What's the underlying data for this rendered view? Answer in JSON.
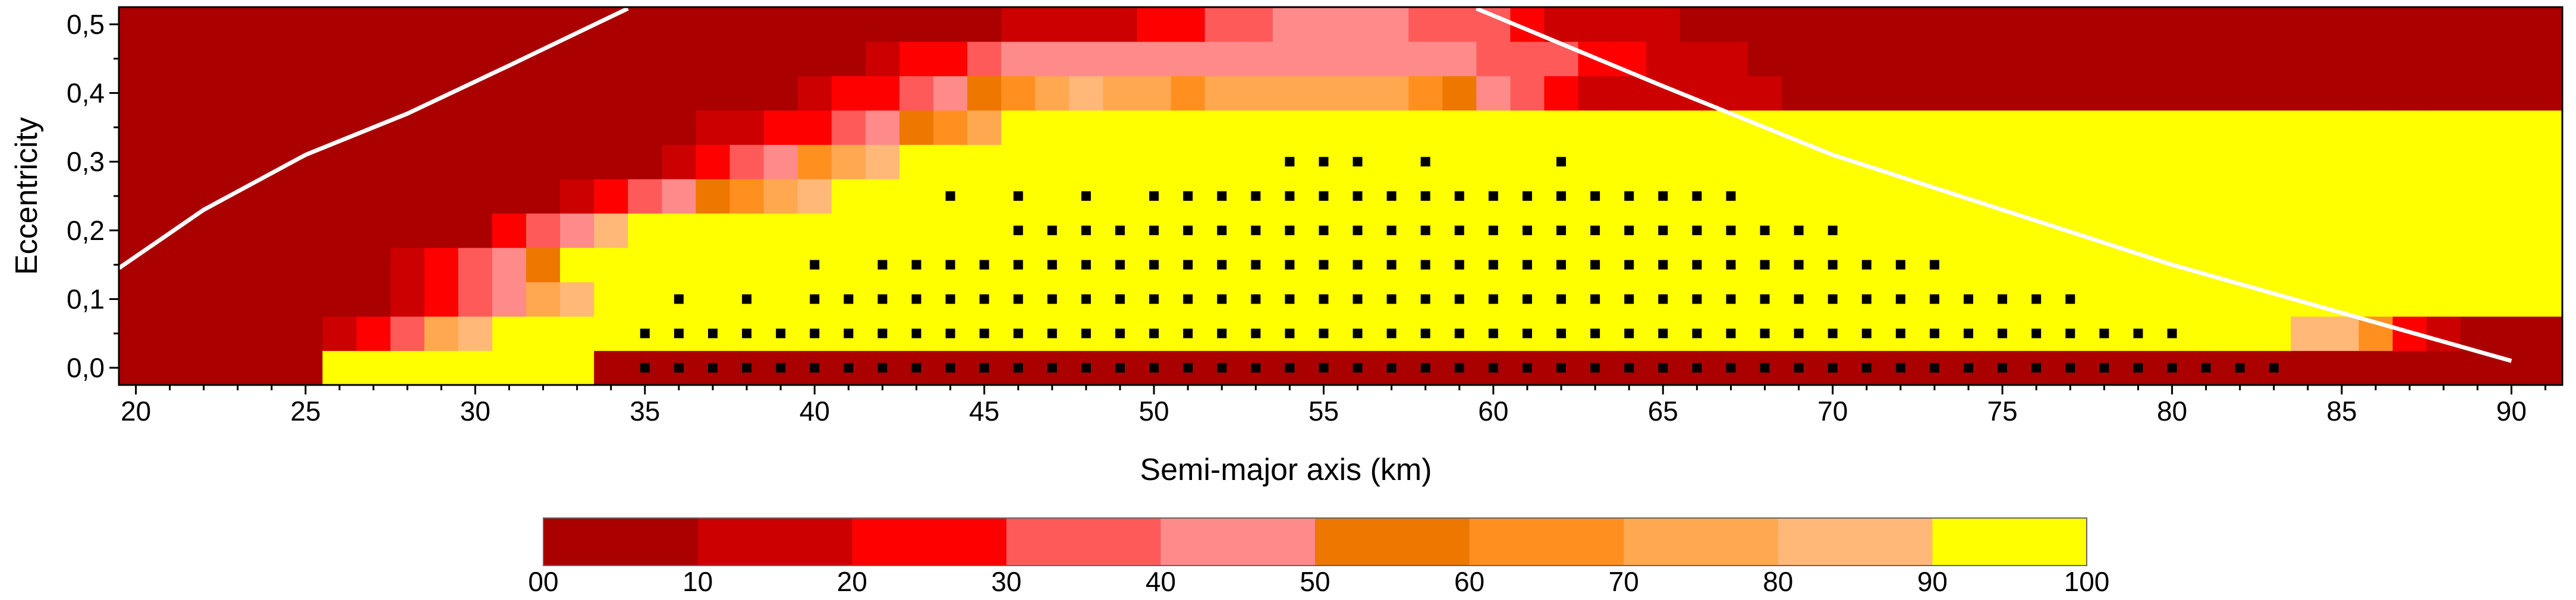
{
  "chart_data": {
    "type": "heatmap",
    "title": "",
    "xlabel": "Semi-major axis (km)",
    "ylabel": "Eccentricity",
    "xlim": [
      19.5,
      91.5
    ],
    "ylim": [
      -0.025,
      0.525
    ],
    "x_ticks": [
      20,
      25,
      30,
      35,
      40,
      45,
      50,
      55,
      60,
      65,
      70,
      75,
      80,
      85,
      90
    ],
    "y_ticks": [
      0.0,
      0.1,
      0.2,
      0.3,
      0.4,
      0.5
    ],
    "x_tick_labels": [
      "20",
      "25",
      "30",
      "35",
      "40",
      "45",
      "50",
      "55",
      "60",
      "65",
      "70",
      "75",
      "80",
      "85",
      "90"
    ],
    "y_tick_labels": [
      "0,0",
      "0,1",
      "0,2",
      "0,3",
      "0,4",
      "0,5"
    ],
    "grid": false,
    "a_values": [
      20,
      21,
      22,
      23,
      24,
      25,
      26,
      27,
      28,
      29,
      30,
      31,
      32,
      33,
      34,
      35,
      36,
      37,
      38,
      39,
      40,
      41,
      42,
      43,
      44,
      45,
      46,
      47,
      48,
      49,
      50,
      51,
      52,
      53,
      54,
      55,
      56,
      57,
      58,
      59,
      60,
      61,
      62,
      63,
      64,
      65,
      66,
      67,
      68,
      69,
      70,
      71,
      72,
      73,
      74,
      75,
      76,
      77,
      78,
      79,
      80,
      81,
      82,
      83,
      84,
      85,
      86,
      87,
      88,
      89,
      90,
      91
    ],
    "e_values": [
      0.0,
      0.05,
      0.1,
      0.15,
      0.2,
      0.25,
      0.3,
      0.35,
      0.4,
      0.45,
      0.5
    ],
    "cell_levels": [
      "000000999999990000000000000000000000000000000000000000000000000000000000",
      "000000123789999999999999999999999999999999999999999999999999999988621000",
      "000000001234789999999999999999999999999999999999999999999999999999999999",
      "000000001234599999999999999999999999999999999999999999999999999999999999",
      "000000000002348999999999999999999999999999999999999999999999999999999999",
      "000000000000012345678999999999999999999999999999999999999999999999999999",
      "000000000000000012346789999999999999999999999999999999999999999999999999",
      "000000000000000001122345679999999999999999999999999999999999999999999999",
      "000000000000000000001223456787767777776543211111100000000000000000000000",
      "000000000000000000000012234444444444444433322111000000000000000000000000",
      "000000000000000000000000001111223344443332111100000000000000000000000000"
    ],
    "colorbar": {
      "boundaries": [
        0,
        10,
        20,
        30,
        40,
        50,
        60,
        70,
        80,
        90,
        100
      ],
      "labels": [
        "00",
        "10",
        "20",
        "30",
        "40",
        "50",
        "60",
        "70",
        "80",
        "90",
        "100"
      ],
      "colors": [
        "#aa0000",
        "#cc0000",
        "#ff0000",
        "#ff5a5a",
        "#ff8a8a",
        "#ee7700",
        "#ff9020",
        "#ffa850",
        "#ffb878",
        "#ffff00"
      ]
    },
    "stable_markers": [
      {
        "e": 0.0,
        "a": [
          35,
          36,
          37,
          38,
          39,
          40,
          41,
          42,
          43,
          44,
          45,
          46,
          47,
          48,
          49,
          50,
          51,
          52,
          53,
          54,
          55,
          56,
          57,
          58,
          59,
          60,
          61,
          62,
          63,
          64,
          65,
          66,
          67,
          68,
          69,
          70,
          71,
          72,
          73,
          74,
          75,
          76,
          77,
          78,
          79,
          80,
          81,
          82,
          83
        ]
      },
      {
        "e": 0.05,
        "a": [
          35,
          36,
          37,
          38,
          39,
          40,
          41,
          42,
          43,
          44,
          45,
          46,
          47,
          48,
          49,
          50,
          51,
          52,
          53,
          54,
          55,
          56,
          57,
          58,
          59,
          60,
          61,
          62,
          63,
          64,
          65,
          66,
          67,
          68,
          69,
          70,
          71,
          72,
          73,
          74,
          75,
          76,
          77,
          78,
          79,
          80
        ]
      },
      {
        "e": 0.1,
        "a": [
          36,
          38,
          40,
          41,
          42,
          43,
          44,
          45,
          46,
          47,
          48,
          49,
          50,
          51,
          52,
          53,
          54,
          55,
          56,
          57,
          58,
          59,
          60,
          61,
          62,
          63,
          64,
          65,
          66,
          67,
          68,
          69,
          70,
          71,
          72,
          73,
          74,
          75,
          76,
          77
        ]
      },
      {
        "e": 0.15,
        "a": [
          40,
          42,
          43,
          44,
          45,
          46,
          47,
          48,
          49,
          50,
          51,
          52,
          53,
          54,
          55,
          56,
          57,
          58,
          59,
          60,
          61,
          62,
          63,
          64,
          65,
          66,
          67,
          68,
          69,
          70,
          71,
          72,
          73
        ]
      },
      {
        "e": 0.2,
        "a": [
          46,
          47,
          48,
          49,
          50,
          51,
          52,
          53,
          54,
          55,
          56,
          57,
          58,
          59,
          60,
          61,
          62,
          63,
          64,
          65,
          66,
          67,
          68,
          69,
          70
        ]
      },
      {
        "e": 0.25,
        "a": [
          44,
          46,
          48,
          50,
          51,
          52,
          53,
          54,
          55,
          56,
          57,
          58,
          59,
          60,
          61,
          62,
          63,
          64,
          65,
          66,
          67
        ]
      },
      {
        "e": 0.3,
        "a": [
          54,
          55,
          56,
          58,
          62
        ]
      }
    ],
    "curves": [
      {
        "points": [
          [
            19.5,
            0.145
          ],
          [
            22,
            0.23
          ],
          [
            25,
            0.31
          ],
          [
            28,
            0.37
          ],
          [
            31,
            0.44
          ],
          [
            34.5,
            0.523
          ]
        ]
      },
      {
        "points": [
          [
            59.5,
            0.523
          ],
          [
            65,
            0.41
          ],
          [
            70,
            0.31
          ],
          [
            75,
            0.23
          ],
          [
            80,
            0.15
          ],
          [
            85,
            0.08
          ],
          [
            90,
            0.01
          ]
        ]
      }
    ]
  }
}
